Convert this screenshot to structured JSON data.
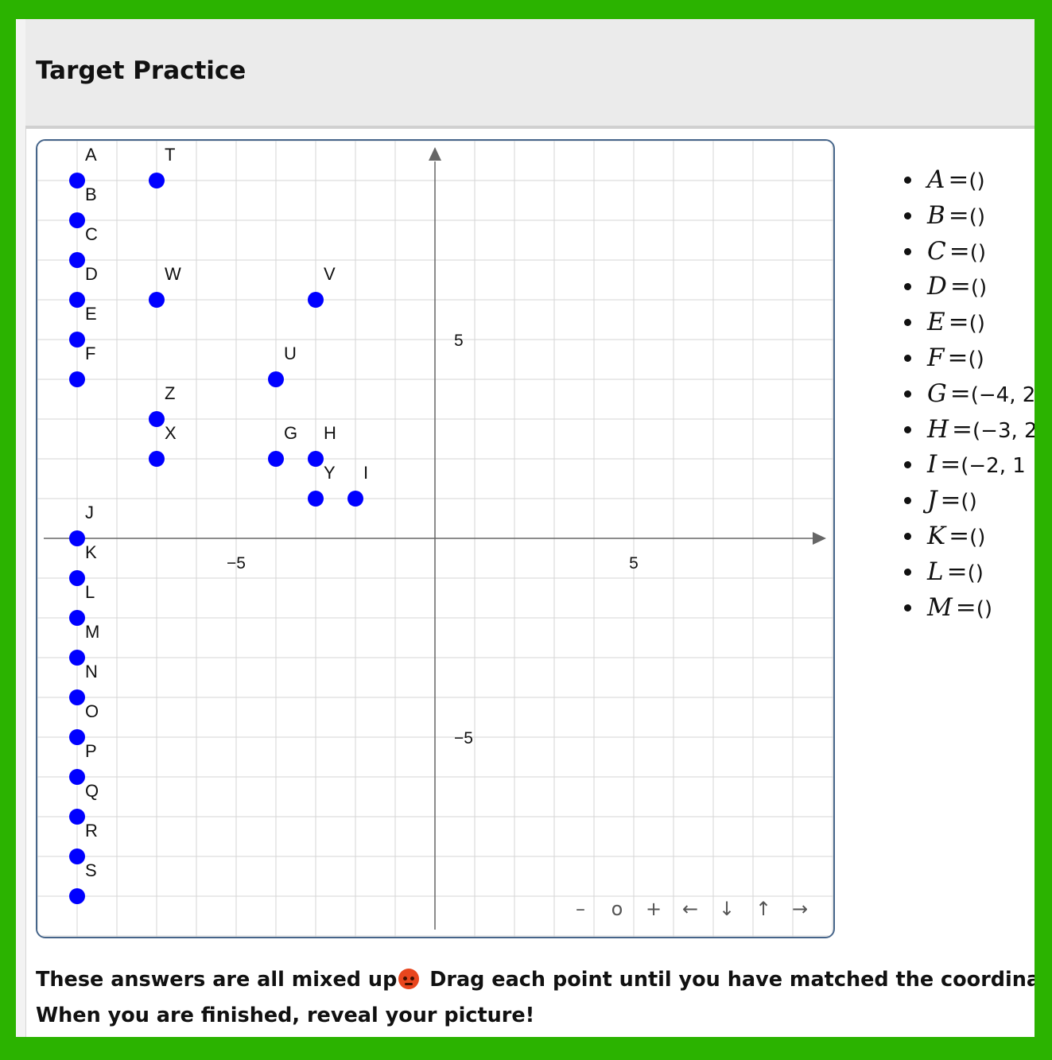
{
  "page": {
    "title": "Target Practice",
    "instructions_line1": "These answers are all mixed up",
    "instructions_line1_rest": " Drag each point until you have matched the coordinates",
    "instructions_line2": "When you are finished, reveal your picture!",
    "emoji": "angry-face-icon",
    "accent_color": "#2bb300",
    "point_color": "#0000ff"
  },
  "chart_data": {
    "type": "scatter",
    "xlim": [
      -10,
      10
    ],
    "ylim": [
      -10,
      10
    ],
    "grid": true,
    "x_ticks": [
      -5,
      5
    ],
    "y_ticks": [
      5,
      -5
    ],
    "points": [
      {
        "label": "A",
        "x": -9,
        "y": 9
      },
      {
        "label": "B",
        "x": -9,
        "y": 8
      },
      {
        "label": "C",
        "x": -9,
        "y": 7
      },
      {
        "label": "D",
        "x": -9,
        "y": 6
      },
      {
        "label": "E",
        "x": -9,
        "y": 5
      },
      {
        "label": "F",
        "x": -9,
        "y": 4
      },
      {
        "label": "J",
        "x": -9,
        "y": 0
      },
      {
        "label": "K",
        "x": -9,
        "y": -1
      },
      {
        "label": "L",
        "x": -9,
        "y": -2
      },
      {
        "label": "M",
        "x": -9,
        "y": -3
      },
      {
        "label": "N",
        "x": -9,
        "y": -4
      },
      {
        "label": "O",
        "x": -9,
        "y": -5
      },
      {
        "label": "P",
        "x": -9,
        "y": -6
      },
      {
        "label": "Q",
        "x": -9,
        "y": -7
      },
      {
        "label": "R",
        "x": -9,
        "y": -8
      },
      {
        "label": "S",
        "x": -9,
        "y": -9
      },
      {
        "label": "T",
        "x": -7,
        "y": 9
      },
      {
        "label": "W",
        "x": -7,
        "y": 6
      },
      {
        "label": "Z",
        "x": -7,
        "y": 3
      },
      {
        "label": "X",
        "x": -7,
        "y": 2
      },
      {
        "label": "V",
        "x": -3,
        "y": 6
      },
      {
        "label": "U",
        "x": -4,
        "y": 4
      },
      {
        "label": "G",
        "x": -4,
        "y": 2
      },
      {
        "label": "H",
        "x": -3,
        "y": 2
      },
      {
        "label": "Y",
        "x": -3,
        "y": 1
      },
      {
        "label": "I",
        "x": -2,
        "y": 1
      }
    ]
  },
  "navbar": {
    "zoom_out": "–",
    "reset": "o",
    "zoom_in": "+",
    "left": "←",
    "down": "↓",
    "up": "↑",
    "right": "→"
  },
  "coordinates": [
    {
      "var": "A",
      "value": "()"
    },
    {
      "var": "B",
      "value": "()"
    },
    {
      "var": "C",
      "value": "()"
    },
    {
      "var": "D",
      "value": "()"
    },
    {
      "var": "E",
      "value": "()"
    },
    {
      "var": "F",
      "value": "()"
    },
    {
      "var": "G",
      "value": "(−4, 2"
    },
    {
      "var": "H",
      "value": "(−3, 2"
    },
    {
      "var": "I",
      "value": "(−2, 1"
    },
    {
      "var": "J",
      "value": "()"
    },
    {
      "var": "K",
      "value": "()"
    },
    {
      "var": "L",
      "value": "()"
    },
    {
      "var": "M",
      "value": "()"
    }
  ]
}
